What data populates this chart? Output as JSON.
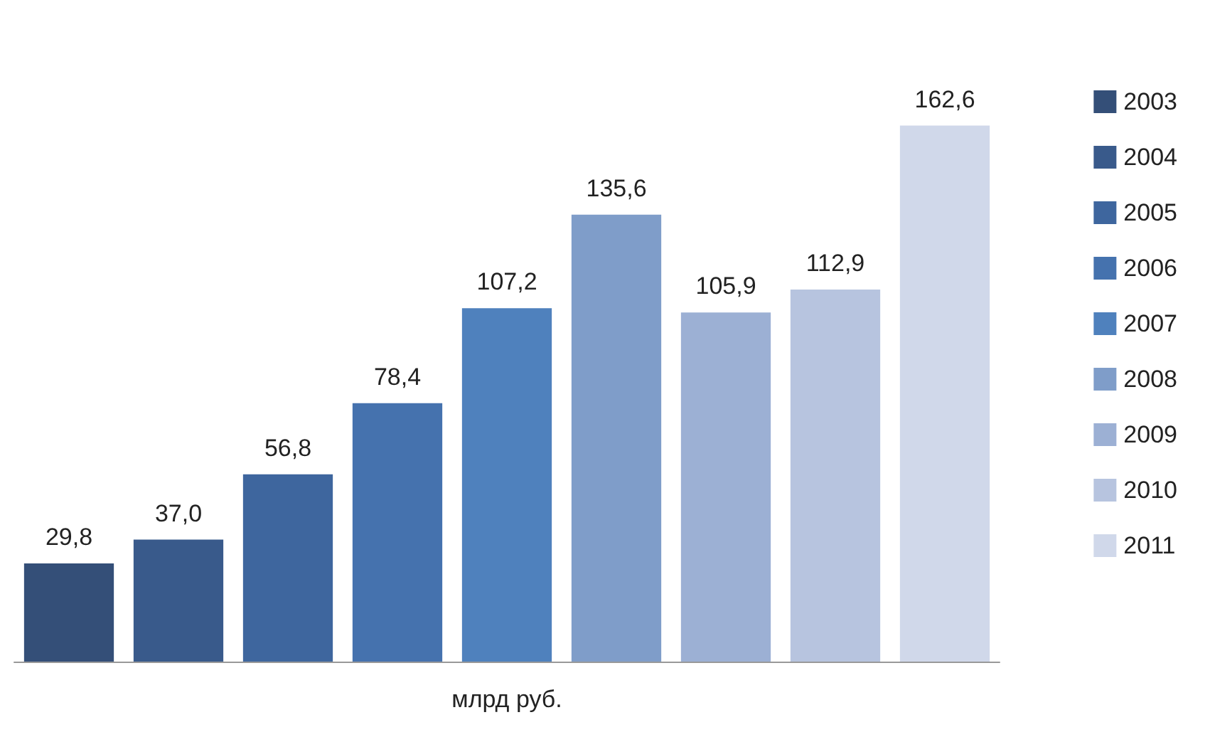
{
  "chart_data": {
    "type": "bar",
    "categories": [
      null,
      null,
      null,
      null,
      null,
      null,
      null,
      null,
      null
    ],
    "xlabel": "млрд руб.",
    "stacked": true,
    "series": [
      {
        "name": "2003",
        "color": "#344f78",
        "values": [
          29.8,
          null,
          null,
          null,
          null,
          null,
          null,
          null,
          null
        ],
        "value_labels": [
          "29,8",
          null,
          null,
          null,
          null,
          null,
          null,
          null,
          null
        ]
      },
      {
        "name": "2004",
        "color": "#395a8b",
        "values": [
          null,
          37.0,
          null,
          null,
          null,
          null,
          null,
          null,
          null
        ],
        "value_labels": [
          null,
          "37,0",
          null,
          null,
          null,
          null,
          null,
          null,
          null
        ]
      },
      {
        "name": "2005",
        "color": "#3e669e",
        "values": [
          null,
          null,
          56.8,
          null,
          null,
          null,
          null,
          null,
          null
        ],
        "value_labels": [
          null,
          null,
          "56,8",
          null,
          null,
          null,
          null,
          null,
          null
        ]
      },
      {
        "name": "2006",
        "color": "#4572ae",
        "values": [
          null,
          null,
          null,
          78.4,
          null,
          null,
          null,
          null,
          null
        ],
        "value_labels": [
          null,
          null,
          null,
          "78,4",
          null,
          null,
          null,
          null,
          null
        ]
      },
      {
        "name": "2007",
        "color": "#4f81bd",
        "values": [
          null,
          null,
          null,
          null,
          107.2,
          null,
          null,
          null,
          null
        ],
        "value_labels": [
          null,
          null,
          null,
          null,
          "107,2",
          null,
          null,
          null,
          null
        ]
      },
      {
        "name": "2008",
        "color": "#7f9dc9",
        "values": [
          null,
          null,
          null,
          null,
          null,
          135.6,
          null,
          null,
          null
        ],
        "value_labels": [
          null,
          null,
          null,
          null,
          null,
          "135,6",
          null,
          null,
          null
        ]
      },
      {
        "name": "2009",
        "color": "#9cb0d4",
        "values": [
          null,
          null,
          null,
          null,
          null,
          null,
          105.9,
          null,
          null
        ],
        "value_labels": [
          null,
          null,
          null,
          null,
          null,
          null,
          "105,9",
          null,
          null
        ]
      },
      {
        "name": "2010",
        "color": "#b7c4df",
        "values": [
          null,
          null,
          null,
          null,
          null,
          null,
          null,
          112.9,
          null
        ],
        "value_labels": [
          null,
          null,
          null,
          null,
          null,
          null,
          null,
          "112,9",
          null
        ]
      },
      {
        "name": "2011",
        "color": "#d0d8ea",
        "values": [
          null,
          null,
          null,
          null,
          null,
          null,
          null,
          null,
          162.6
        ],
        "value_labels": [
          null,
          null,
          null,
          null,
          null,
          null,
          null,
          null,
          "162,6"
        ]
      }
    ],
    "legend": "right",
    "grid": false
  }
}
